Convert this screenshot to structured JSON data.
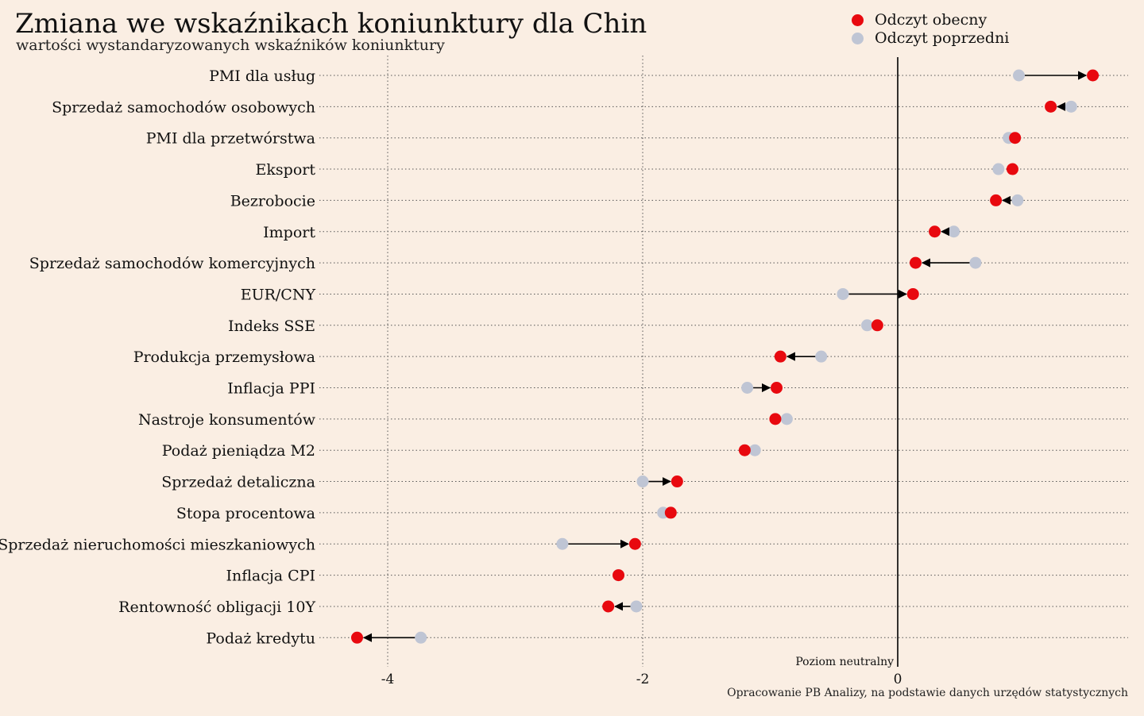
{
  "chart_data": {
    "type": "dumbbell",
    "title": "Zmiana we wskaźnikach koniunktury dla Chin",
    "subtitle": "wartości wystandaryzowanych wskaźników koniunktury",
    "source": "Opracowanie PB Analizy, na podstawie danych urzędów statystycznych",
    "reference_line": {
      "value": 0,
      "label": "Poziom neutralny"
    },
    "legend": {
      "placement": "top-right",
      "current": {
        "label": "Odczyt obecny",
        "color": "#E8090F"
      },
      "previous": {
        "label": "Odczyt poprzedni",
        "color": "#BFC5D4"
      }
    },
    "xlim": [
      -5.1,
      1.82
    ],
    "x_ticks": [
      {
        "value": -4,
        "label": "-4"
      },
      {
        "value": -2,
        "label": "-2"
      },
      {
        "value": 0,
        "label": "0"
      }
    ],
    "grid": true,
    "categories": [
      "PMI dla usług",
      "Sprzedaż samochodów osobowych",
      "PMI dla przetwórstwa",
      "Eksport",
      "Bezrobocie",
      "Import",
      "Sprzedaż samochodów komercyjnych",
      "EUR/CNY",
      "Indeks SSE",
      "Produkcja przemysłowa",
      "Inflacja PPI",
      "Nastroje konsumentów",
      "Podaż pieniądza M2",
      "Sprzedaż detaliczna",
      "Stopa procentowa",
      "Sprzedaż nieruchomości mieszkaniowych",
      "Inflacja CPI",
      "Rentowność obligacji 10Y",
      "Podaż kredytu"
    ],
    "series": [
      {
        "name": "Odczyt obecny",
        "values": [
          1.53,
          1.2,
          0.92,
          0.9,
          0.77,
          0.29,
          0.14,
          0.12,
          -0.16,
          -0.92,
          -0.95,
          -0.96,
          -1.2,
          -1.73,
          -1.78,
          -2.06,
          -2.19,
          -2.27,
          -4.24
        ]
      },
      {
        "name": "Odczyt poprzedni",
        "values": [
          0.95,
          1.36,
          0.87,
          0.79,
          0.94,
          0.44,
          0.61,
          -0.43,
          -0.24,
          -0.6,
          -1.18,
          -0.87,
          -1.12,
          -2.0,
          -1.84,
          -2.63,
          -2.19,
          -2.05,
          -3.74
        ]
      }
    ]
  }
}
